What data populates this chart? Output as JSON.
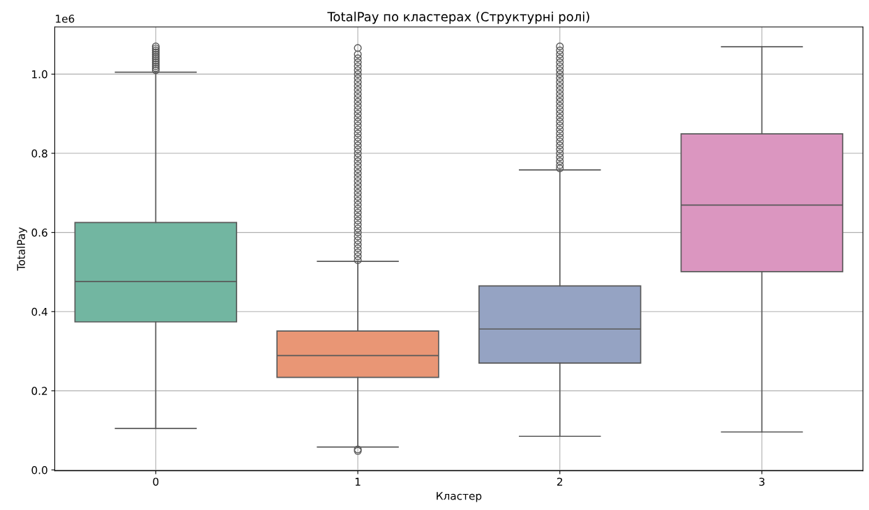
{
  "chart_data": {
    "type": "box",
    "title": "TotalPay по кластерах (Структурні ролі)",
    "xlabel": "Кластер",
    "ylabel": "TotalPay",
    "categories": [
      "0",
      "1",
      "2",
      "3"
    ],
    "colors": [
      "#72b6a1",
      "#e99675",
      "#95a3c3",
      "#db96c0"
    ],
    "boxes": [
      {
        "low": 0.105,
        "q1": 0.374,
        "median": 0.476,
        "q3": 0.625,
        "high": 1.005,
        "outliers": [
          1.01,
          1.015,
          1.02,
          1.025,
          1.03,
          1.035,
          1.04,
          1.045,
          1.05,
          1.055,
          1.06,
          1.065,
          1.07
        ]
      },
      {
        "low": 0.058,
        "q1": 0.234,
        "median": 0.289,
        "q3": 0.351,
        "high": 0.527,
        "outliers": [
          0.048,
          0.052,
          0.53,
          0.54,
          0.55,
          0.56,
          0.57,
          0.58,
          0.59,
          0.6,
          0.61,
          0.62,
          0.63,
          0.64,
          0.65,
          0.66,
          0.67,
          0.68,
          0.69,
          0.7,
          0.71,
          0.72,
          0.73,
          0.74,
          0.75,
          0.76,
          0.77,
          0.78,
          0.79,
          0.8,
          0.81,
          0.82,
          0.83,
          0.84,
          0.85,
          0.86,
          0.87,
          0.88,
          0.89,
          0.9,
          0.91,
          0.92,
          0.93,
          0.94,
          0.95,
          0.96,
          0.97,
          0.98,
          0.99,
          1.0,
          1.01,
          1.02,
          1.03,
          1.04,
          1.05,
          1.066
        ]
      },
      {
        "low": 0.085,
        "q1": 0.27,
        "median": 0.356,
        "q3": 0.465,
        "high": 0.758,
        "outliers": [
          0.762,
          0.77,
          0.78,
          0.79,
          0.8,
          0.81,
          0.82,
          0.83,
          0.84,
          0.85,
          0.86,
          0.87,
          0.88,
          0.89,
          0.9,
          0.91,
          0.92,
          0.93,
          0.94,
          0.95,
          0.96,
          0.97,
          0.98,
          0.99,
          1.0,
          1.01,
          1.02,
          1.03,
          1.04,
          1.05,
          1.06,
          1.07
        ]
      },
      {
        "low": 0.096,
        "q1": 0.501,
        "median": 0.669,
        "q3": 0.849,
        "high": 1.069
      }
    ],
    "ylim": [
      -0.002,
      1.119
    ],
    "yticks": [
      {
        "value": 0,
        "label": "0.0"
      },
      0.2,
      0.4,
      0.6,
      0.8,
      {
        "value": 1,
        "label": "1.0"
      }
    ],
    "annotations": [
      "1e6"
    ],
    "grid": true,
    "marker": "circle"
  }
}
